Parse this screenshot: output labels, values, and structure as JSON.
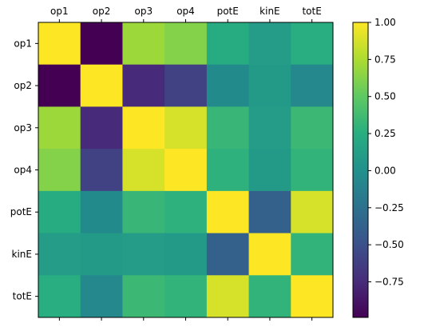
{
  "chart_data": {
    "type": "heatmap",
    "x_labels": [
      "op1",
      "op2",
      "op3",
      "op4",
      "potE",
      "kinE",
      "totE"
    ],
    "y_labels": [
      "op1",
      "op2",
      "op3",
      "op4",
      "potE",
      "kinE",
      "totE"
    ],
    "x_axis_position": "top",
    "values": [
      [
        1.0,
        -0.99,
        0.7,
        0.62,
        0.23,
        0.1,
        0.25
      ],
      [
        -0.99,
        1.0,
        -0.75,
        -0.6,
        -0.05,
        0.08,
        -0.07
      ],
      [
        0.7,
        -0.75,
        1.0,
        0.88,
        0.33,
        0.1,
        0.35
      ],
      [
        0.62,
        -0.6,
        0.88,
        1.0,
        0.28,
        0.08,
        0.3
      ],
      [
        0.23,
        -0.05,
        0.33,
        0.28,
        1.0,
        -0.38,
        0.88
      ],
      [
        0.1,
        0.08,
        0.1,
        0.08,
        -0.38,
        1.0,
        0.3
      ],
      [
        0.25,
        -0.07,
        0.35,
        0.3,
        0.88,
        0.3,
        1.0
      ]
    ],
    "colormap": "viridis",
    "vmin": -0.99,
    "vmax": 1.0,
    "colorbar": {
      "ticks": [
        1.0,
        0.75,
        0.5,
        0.25,
        0.0,
        -0.25,
        -0.5,
        -0.75
      ],
      "tick_labels": [
        "1.00",
        "0.75",
        "0.50",
        "0.25",
        "0.00",
        "−0.25",
        "−0.50",
        "−0.75"
      ]
    },
    "grid": false
  }
}
